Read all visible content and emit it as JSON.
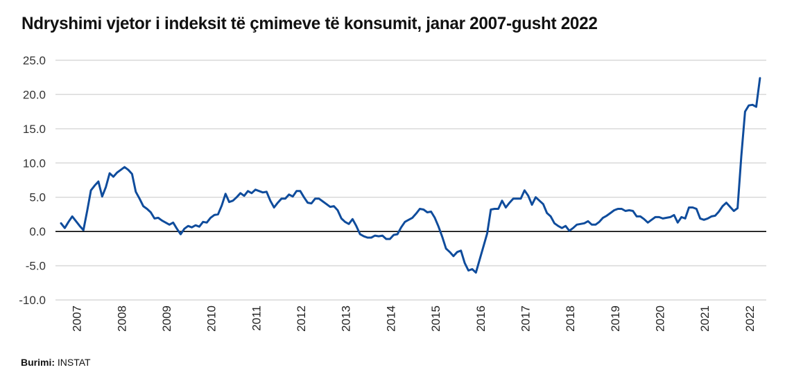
{
  "chart_data": {
    "type": "line",
    "title": "Ndryshimi vjetor i indeksit të çmimeve të konsumit, janar 2007-gusht 2022",
    "xlabel": "",
    "ylabel": "",
    "start_month": "2007-01",
    "end_month": "2022-08",
    "frequency": "monthly",
    "ylim": [
      -10,
      25
    ],
    "yticks": [
      "25.0",
      "20.0",
      "15.0",
      "10.0",
      "5.0",
      "0.0",
      "-5.0",
      "-10.0"
    ],
    "ytick_values": [
      25,
      20,
      15,
      10,
      5,
      0,
      -5,
      -10
    ],
    "xticks": [
      "2007",
      "2008",
      "2009",
      "2010",
      "2011",
      "2012",
      "2013",
      "2014",
      "2015",
      "2016",
      "2017",
      "2018",
      "2019",
      "2020",
      "2021",
      "2022"
    ],
    "grid": true,
    "line_color": "#0f4c9c",
    "zero_line_color": "#000000",
    "series": [
      {
        "values": [
          1.2,
          0.5,
          1.4,
          2.2,
          1.5,
          0.8,
          0.2,
          3.0,
          6.0,
          6.7,
          7.3,
          5.1,
          6.5,
          8.5,
          8.0,
          8.6,
          9.0,
          9.4,
          9.0,
          8.4,
          5.8,
          4.8,
          3.7,
          3.3,
          2.8,
          1.9,
          2.0,
          1.6,
          1.3,
          1.0,
          1.3,
          0.4,
          -0.4,
          0.4,
          0.8,
          0.6,
          0.9,
          0.7,
          1.4,
          1.3,
          2.0,
          2.4,
          2.5,
          3.8,
          5.5,
          4.3,
          4.5,
          5.0,
          5.6,
          5.2,
          5.9,
          5.6,
          6.1,
          5.9,
          5.7,
          5.8,
          4.5,
          3.5,
          4.2,
          4.8,
          4.8,
          5.4,
          5.1,
          5.9,
          5.9,
          5.0,
          4.2,
          4.1,
          4.8,
          4.8,
          4.4,
          4.0,
          3.6,
          3.7,
          3.1,
          1.9,
          1.4,
          1.1,
          1.8,
          0.8,
          -0.4,
          -0.7,
          -0.9,
          -0.9,
          -0.6,
          -0.7,
          -0.6,
          -1.1,
          -1.1,
          -0.5,
          -0.4,
          0.6,
          1.4,
          1.7,
          2.0,
          2.6,
          3.3,
          3.2,
          2.8,
          2.9,
          2.0,
          0.7,
          -0.8,
          -2.5,
          -3.0,
          -3.6,
          -3.0,
          -2.8,
          -4.6,
          -5.7,
          -5.5,
          -6.0,
          -4.1,
          -2.2,
          -0.3,
          3.2,
          3.3,
          3.3,
          4.5,
          3.5,
          4.2,
          4.8,
          4.8,
          4.8,
          6.0,
          5.2,
          3.9,
          5.0,
          4.5,
          4.0,
          2.7,
          2.2,
          1.2,
          0.8,
          0.5,
          0.8,
          0.1,
          0.5,
          1.0,
          1.1,
          1.2,
          1.5,
          1.0,
          1.0,
          1.4,
          2.0,
          2.3,
          2.7,
          3.1,
          3.3,
          3.3,
          3.0,
          3.1,
          3.0,
          2.2,
          2.2,
          1.8,
          1.3,
          1.7,
          2.1,
          2.1,
          1.9,
          2.0,
          2.1,
          2.4,
          1.3,
          2.1,
          1.9,
          3.5,
          3.5,
          3.3,
          1.9,
          1.7,
          1.9,
          2.2,
          2.3,
          2.9,
          3.7,
          4.2,
          3.6,
          3.0,
          3.4,
          11.0,
          17.5,
          18.4,
          18.5,
          18.2,
          22.4
        ]
      }
    ]
  },
  "source": {
    "label": "Burimi:",
    "value": "INSTAT"
  }
}
